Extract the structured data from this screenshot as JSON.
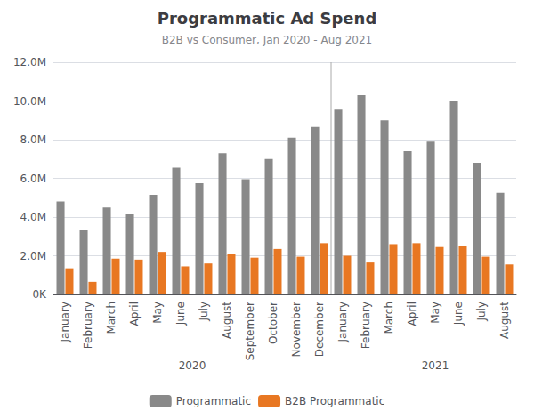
{
  "chart_data": {
    "type": "bar",
    "title": "Programmatic Ad Spend",
    "subtitle": "B2B vs Consumer, Jan 2020 - Aug 2021",
    "categories": [
      "January",
      "February",
      "March",
      "April",
      "May",
      "June",
      "July",
      "August",
      "September",
      "October",
      "November",
      "December",
      "January",
      "February",
      "March",
      "April",
      "May",
      "June",
      "July",
      "August"
    ],
    "series": [
      {
        "name": "Programmatic",
        "color": "#898989",
        "values": [
          4800000,
          3350000,
          4500000,
          4150000,
          5150000,
          6550000,
          5750000,
          7300000,
          5950000,
          7000000,
          8100000,
          8650000,
          9550000,
          10300000,
          9000000,
          7400000,
          7900000,
          10000000,
          6800000,
          5250000
        ]
      },
      {
        "name": "B2B Programmatic",
        "color": "#E87722",
        "values": [
          1350000,
          650000,
          1850000,
          1800000,
          2200000,
          1450000,
          1600000,
          2100000,
          1900000,
          2350000,
          1950000,
          2650000,
          2000000,
          1650000,
          2600000,
          2650000,
          2450000,
          2500000,
          1950000,
          1550000
        ]
      }
    ],
    "ylim": [
      0,
      12000000
    ],
    "yticks": [
      {
        "value": 0,
        "label": "0K"
      },
      {
        "value": 2000000,
        "label": "2.0M"
      },
      {
        "value": 4000000,
        "label": "4.0M"
      },
      {
        "value": 6000000,
        "label": "6.0M"
      },
      {
        "value": 8000000,
        "label": "8.0M"
      },
      {
        "value": 10000000,
        "label": "10.0M"
      },
      {
        "value": 12000000,
        "label": "12.0M"
      }
    ],
    "grid": true,
    "legend": "bottom",
    "annotations": [
      {
        "text": "2020",
        "x": 5.5
      },
      {
        "text": "2021",
        "x": 16.0
      }
    ],
    "divider": 11.5
  }
}
